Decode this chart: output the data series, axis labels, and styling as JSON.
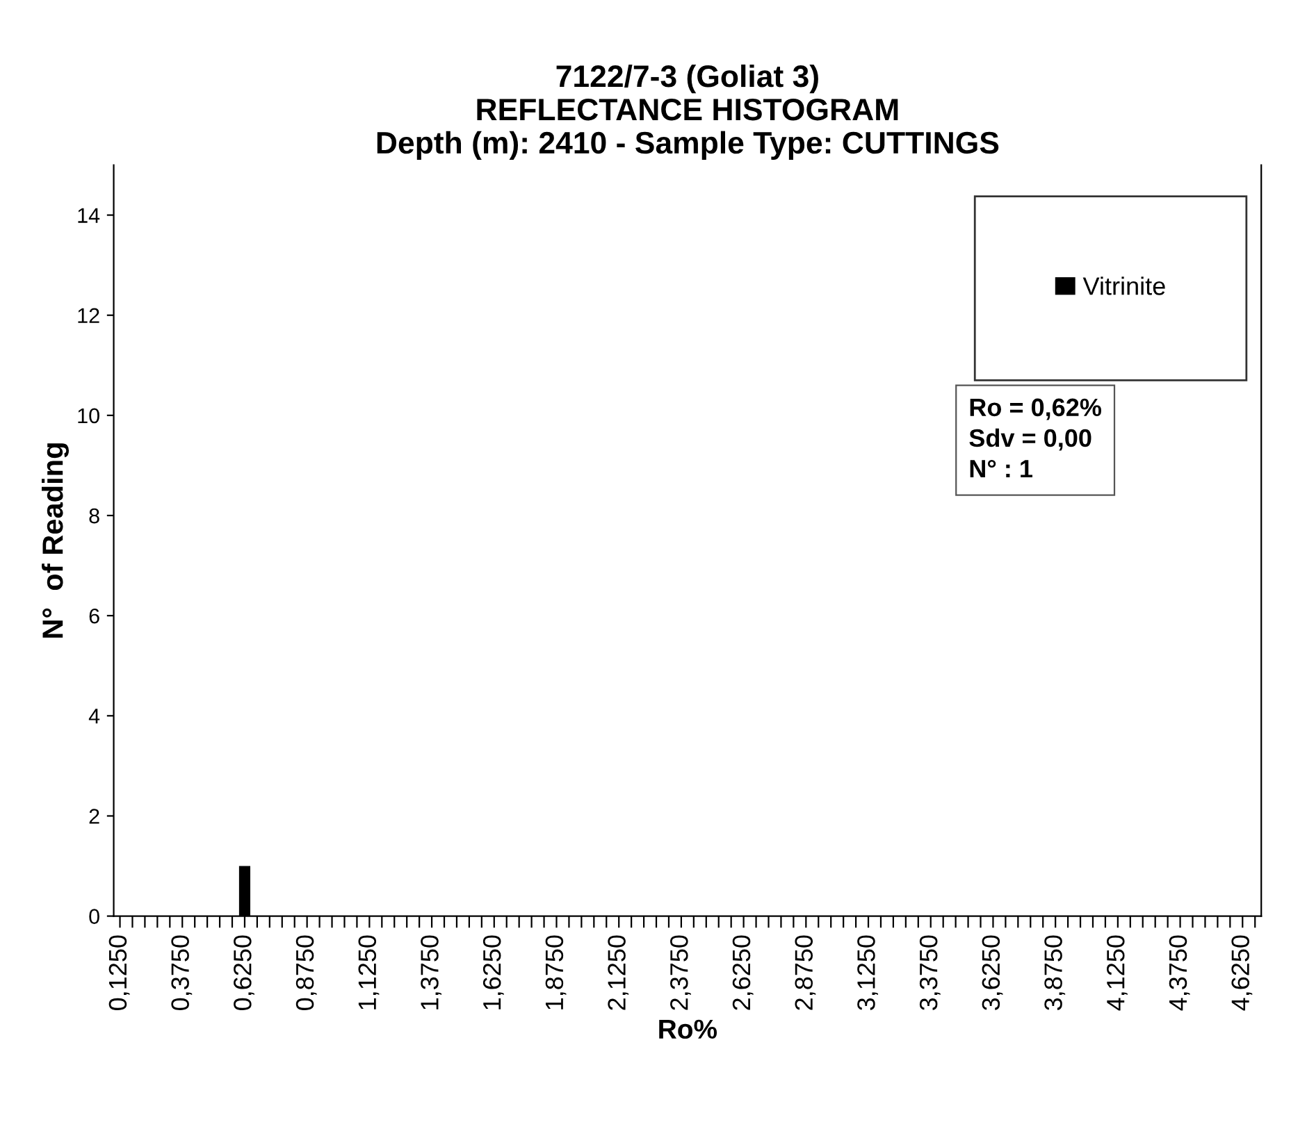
{
  "chart_data": {
    "type": "bar",
    "title": "7122/7-3 (Goliat 3)\nREFLECTANCE HISTOGRAM\nDepth (m): 2410 - Sample Type: CUTTINGS",
    "xlabel": "Ro%",
    "ylabel": "N°  of Reading",
    "categories": [
      "0,1250",
      null,
      null,
      null,
      null,
      "0,3750",
      null,
      null,
      null,
      null,
      "0,6250",
      null,
      null,
      null,
      null,
      "0,8750",
      null,
      null,
      null,
      null,
      "1,1250",
      null,
      null,
      null,
      null,
      "1,3750",
      null,
      null,
      null,
      null,
      "1,6250",
      null,
      null,
      null,
      null,
      "1,8750",
      null,
      null,
      null,
      null,
      "2,1250",
      null,
      null,
      null,
      null,
      "2,3750",
      null,
      null,
      null,
      null,
      "2,6250",
      null,
      null,
      null,
      null,
      "2,8750",
      null,
      null,
      null,
      null,
      "3,1250",
      null,
      null,
      null,
      null,
      "3,3750",
      null,
      null,
      null,
      null,
      "3,6250",
      null,
      null,
      null,
      null,
      "3,8750",
      null,
      null,
      null,
      null,
      "4,1250",
      null,
      null,
      null,
      null,
      "4,3750",
      null,
      null,
      null,
      null,
      "4,6250",
      null
    ],
    "series": [
      {
        "name": "Vitrinite",
        "color": "#000000",
        "values": [
          0,
          0,
          0,
          0,
          0,
          0,
          0,
          0,
          0,
          0,
          1,
          0,
          0,
          0,
          0,
          0,
          0,
          0,
          0,
          0,
          0,
          0,
          0,
          0,
          0,
          0,
          0,
          0,
          0,
          0,
          0,
          0,
          0,
          0,
          0,
          0,
          0,
          0,
          0,
          0,
          0,
          0,
          0,
          0,
          0,
          0,
          0,
          0,
          0,
          0,
          0,
          0,
          0,
          0,
          0,
          0,
          0,
          0,
          0,
          0,
          0,
          0,
          0,
          0,
          0,
          0,
          0,
          0,
          0,
          0,
          0,
          0,
          0,
          0,
          0,
          0,
          0,
          0,
          0,
          0,
          0,
          0,
          0,
          0,
          0,
          0,
          0,
          0,
          0,
          0,
          0,
          0
        ]
      }
    ],
    "ylim": [
      0,
      15
    ],
    "yticks": [
      0,
      2,
      4,
      6,
      8,
      10,
      12,
      14
    ],
    "annotations": [
      "Ro = 0,62%\nSdv = 0,00\nN° : 1"
    ],
    "legend": "top right",
    "grid": false
  }
}
